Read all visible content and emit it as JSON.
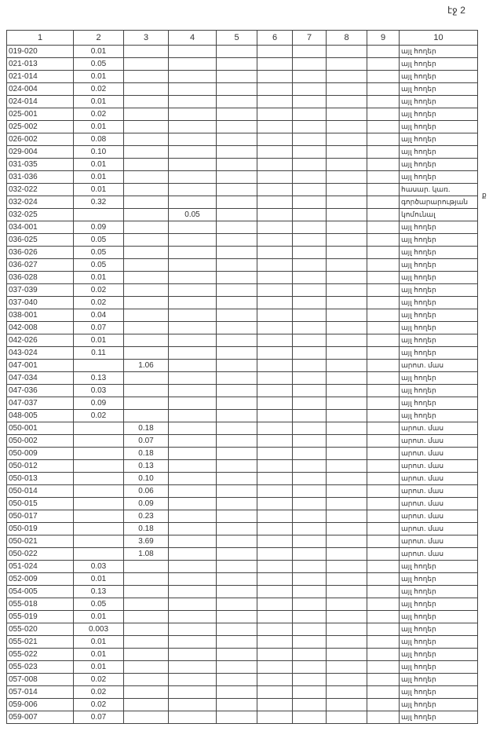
{
  "page_label": "էջ 2",
  "side_mark": "ք",
  "columns": [
    "1",
    "2",
    "3",
    "4",
    "5",
    "6",
    "7",
    "8",
    "9",
    "10"
  ],
  "rows": [
    [
      "019-020",
      "0.01",
      "",
      "",
      "այլ հողեր"
    ],
    [
      "021-013",
      "0.05",
      "",
      "",
      "այլ հողեր"
    ],
    [
      "021-014",
      "0.01",
      "",
      "",
      "այլ հողեր"
    ],
    [
      "024-004",
      "0.02",
      "",
      "",
      "այլ հողեր"
    ],
    [
      "024-014",
      "0.01",
      "",
      "",
      "այլ հողեր"
    ],
    [
      "025-001",
      "0.02",
      "",
      "",
      "այլ հողեր"
    ],
    [
      "025-002",
      "0.01",
      "",
      "",
      "այլ հողեր"
    ],
    [
      "026-002",
      "0.08",
      "",
      "",
      "այլ հողեր"
    ],
    [
      "029-004",
      "0.10",
      "",
      "",
      "այլ հողեր"
    ],
    [
      "031-035",
      "0.01",
      "",
      "",
      "այլ հողեր"
    ],
    [
      "031-036",
      "0.01",
      "",
      "",
      "այլ հողեր"
    ],
    [
      "032-022",
      "0.01",
      "",
      "",
      "հասար. կառ."
    ],
    [
      "032-024",
      "0.32",
      "",
      "",
      "գործարարության"
    ],
    [
      "032-025",
      "",
      "",
      "0.05",
      "կոմունալ"
    ],
    [
      "034-001",
      "0.09",
      "",
      "",
      "այլ հողեր"
    ],
    [
      "036-025",
      "0.05",
      "",
      "",
      "այլ հողեր"
    ],
    [
      "036-026",
      "0.05",
      "",
      "",
      "այլ հողեր"
    ],
    [
      "036-027",
      "0.05",
      "",
      "",
      "այլ հողեր"
    ],
    [
      "036-028",
      "0.01",
      "",
      "",
      "այլ հողեր"
    ],
    [
      "037-039",
      "0.02",
      "",
      "",
      "այլ հողեր"
    ],
    [
      "037-040",
      "0.02",
      "",
      "",
      "այլ հողեր"
    ],
    [
      "038-001",
      "0.04",
      "",
      "",
      "այլ հողեր"
    ],
    [
      "042-008",
      "0.07",
      "",
      "",
      "այլ հողեր"
    ],
    [
      "042-026",
      "0.01",
      "",
      "",
      "այլ հողեր"
    ],
    [
      "043-024",
      "0.11",
      "",
      "",
      "այլ հողեր"
    ],
    [
      "047-001",
      "",
      "1.06",
      "",
      "արոտ. մաս"
    ],
    [
      "047-034",
      "0.13",
      "",
      "",
      "այլ հողեր"
    ],
    [
      "047-036",
      "0.03",
      "",
      "",
      "այլ հողեր"
    ],
    [
      "047-037",
      "0.09",
      "",
      "",
      "այլ հողեր"
    ],
    [
      "048-005",
      "0.02",
      "",
      "",
      "այլ հողեր"
    ],
    [
      "050-001",
      "",
      "0.18",
      "",
      "արոտ. մաս"
    ],
    [
      "050-002",
      "",
      "0.07",
      "",
      "արոտ. մաս"
    ],
    [
      "050-009",
      "",
      "0.18",
      "",
      "արոտ. մաս"
    ],
    [
      "050-012",
      "",
      "0.13",
      "",
      "արոտ. մաս"
    ],
    [
      "050-013",
      "",
      "0.10",
      "",
      "արոտ. մաս"
    ],
    [
      "050-014",
      "",
      "0.06",
      "",
      "արոտ. մաս"
    ],
    [
      "050-015",
      "",
      "0.09",
      "",
      "արոտ. մաս"
    ],
    [
      "050-017",
      "",
      "0.23",
      "",
      "արոտ. մաս"
    ],
    [
      "050-019",
      "",
      "0.18",
      "",
      "արոտ. մաս"
    ],
    [
      "050-021",
      "",
      "3.69",
      "",
      "արոտ. մաս"
    ],
    [
      "050-022",
      "",
      "1.08",
      "",
      "արոտ. մաս"
    ],
    [
      "051-024",
      "0.03",
      "",
      "",
      "այլ հողեր"
    ],
    [
      "052-009",
      "0.01",
      "",
      "",
      "այլ հողեր"
    ],
    [
      "054-005",
      "0.13",
      "",
      "",
      "այլ հողեր"
    ],
    [
      "055-018",
      "0.05",
      "",
      "",
      "այլ հողեր"
    ],
    [
      "055-019",
      "0.01",
      "",
      "",
      "այլ հողեր"
    ],
    [
      "055-020",
      "0.003",
      "",
      "",
      "այլ հողեր"
    ],
    [
      "055-021",
      "0.01",
      "",
      "",
      "այլ հողեր"
    ],
    [
      "055-022",
      "0.01",
      "",
      "",
      "այլ հողեր"
    ],
    [
      "055-023",
      "0.01",
      "",
      "",
      "այլ հողեր"
    ],
    [
      "057-008",
      "0.02",
      "",
      "",
      "այլ հողեր"
    ],
    [
      "057-014",
      "0.02",
      "",
      "",
      "այլ հողեր"
    ],
    [
      "059-006",
      "0.02",
      "",
      "",
      "այլ հողեր"
    ],
    [
      "059-007",
      "0.07",
      "",
      "",
      "այլ հողեր"
    ]
  ]
}
